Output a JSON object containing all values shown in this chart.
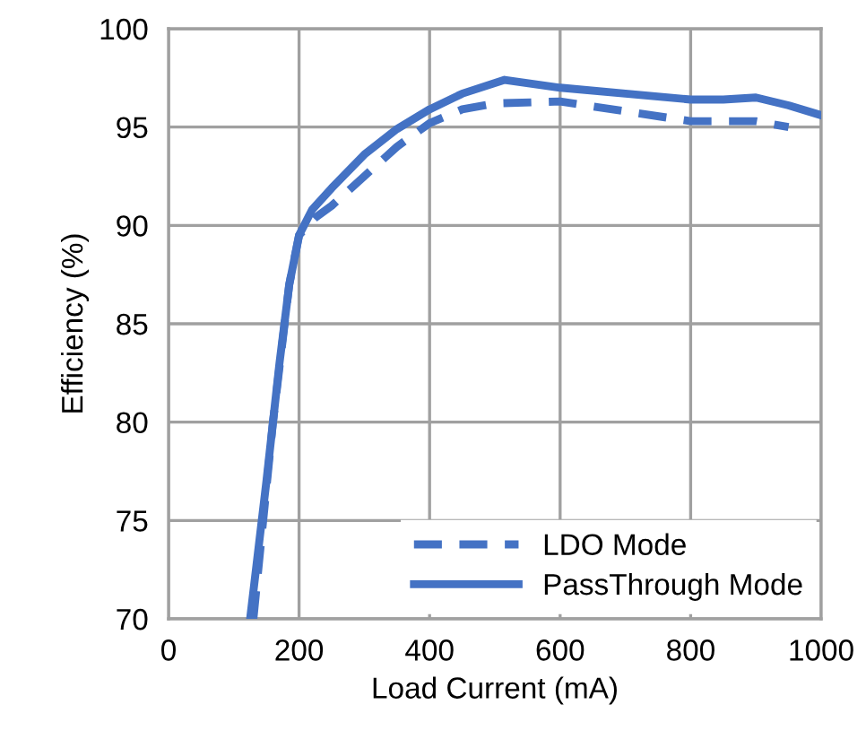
{
  "chart_data": {
    "type": "line",
    "xlabel": "Load Current (mA)",
    "ylabel": "Efficiency (%)",
    "xlim": [
      0,
      1000
    ],
    "xticks": [
      0,
      200,
      400,
      600,
      800,
      1000
    ],
    "ylim": [
      70,
      100
    ],
    "yticks": [
      70,
      75,
      80,
      85,
      90,
      95,
      100
    ],
    "grid": true,
    "legend": "bottom right",
    "marker": "none",
    "series": [
      {
        "name": "LDO Mode",
        "color": "#4472c4",
        "line_style": "dashed",
        "x": [
          130,
          160,
          185,
          200,
          225,
          250,
          300,
          350,
          400,
          450,
          500,
          600,
          700,
          800,
          900,
          950
        ],
        "values": [
          70,
          80,
          87,
          89.5,
          90.4,
          91.0,
          92.5,
          94.0,
          95.2,
          95.9,
          96.2,
          96.3,
          95.8,
          95.3,
          95.3,
          95.0
        ]
      },
      {
        "name": "PassThrough Mode",
        "color": "#4472c4",
        "line_style": "solid",
        "x": [
          125,
          150,
          170,
          185,
          200,
          220,
          250,
          300,
          350,
          400,
          450,
          515,
          600,
          700,
          800,
          850,
          900,
          950,
          1000
        ],
        "values": [
          70,
          77,
          83,
          87,
          89.5,
          90.8,
          91.9,
          93.6,
          94.9,
          95.9,
          96.7,
          97.4,
          97.0,
          96.7,
          96.4,
          96.4,
          96.5,
          96.1,
          95.6
        ]
      }
    ]
  }
}
